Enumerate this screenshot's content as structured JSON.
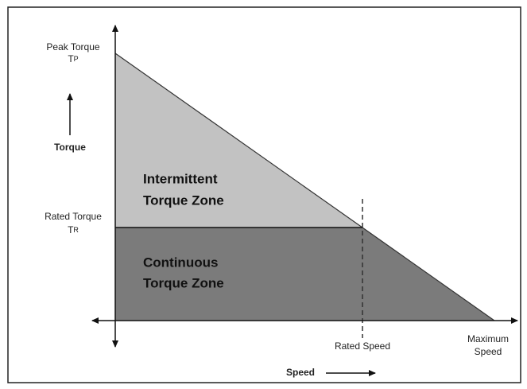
{
  "axes": {
    "y_label": "Torque",
    "x_label": "Speed"
  },
  "peak": {
    "label": "Peak Torque",
    "symbol": "T",
    "subscript": "P"
  },
  "rated": {
    "label": "Rated Torque",
    "symbol": "T",
    "subscript": "R"
  },
  "zones": {
    "intermittent": [
      "Intermittent",
      "Torque Zone"
    ],
    "continuous": [
      "Continuous",
      "Torque Zone"
    ]
  },
  "speeds": {
    "rated": "Rated Speed",
    "maximum": [
      "Maximum",
      "Speed"
    ]
  }
}
